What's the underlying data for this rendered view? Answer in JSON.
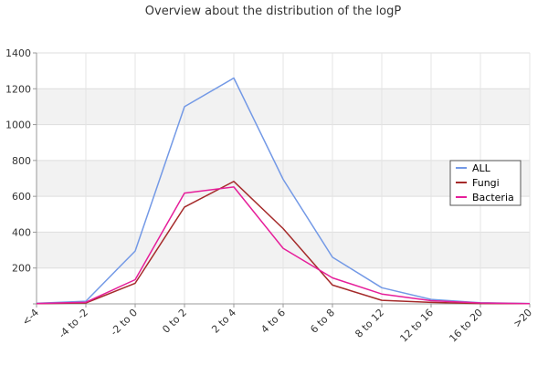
{
  "chart_data": {
    "type": "line",
    "title": "Overview about the distribution of the logP",
    "categories": [
      "<-4",
      "-4 to -2",
      "-2 to 0",
      "0 to 2",
      "2 to 4",
      "4 to 6",
      "6 to 8",
      "8 to 12",
      "12 to 16",
      "16 to 20",
      ">20"
    ],
    "ylim": [
      0,
      1400
    ],
    "yticks": [
      "200",
      "400",
      "600",
      "800",
      "1000",
      "1200",
      "1400"
    ],
    "grid": true,
    "legend_position": "right",
    "series": [
      {
        "name": "ALL",
        "color": "#7399e6",
        "values": [
          3,
          15,
          295,
          1100,
          1260,
          695,
          260,
          90,
          25,
          6,
          2
        ]
      },
      {
        "name": "Fungi",
        "color": "#a52a2a",
        "values": [
          1,
          5,
          115,
          540,
          683,
          420,
          105,
          20,
          8,
          2,
          1
        ]
      },
      {
        "name": "Bacteria",
        "color": "#e61e9a",
        "values": [
          2,
          9,
          135,
          618,
          652,
          310,
          145,
          55,
          18,
          5,
          1
        ]
      }
    ]
  }
}
